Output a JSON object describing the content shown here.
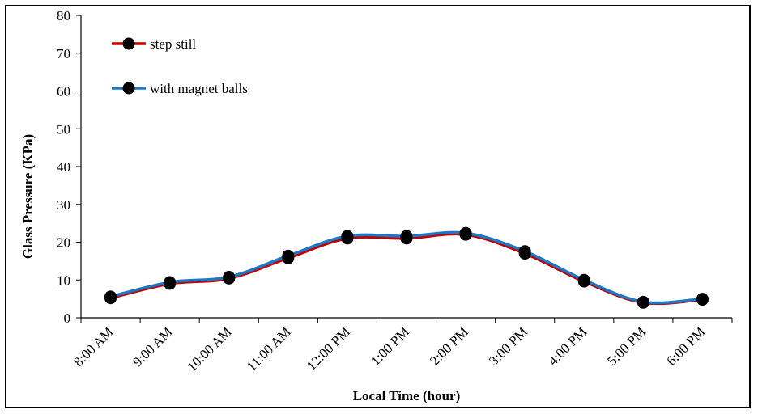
{
  "chart_data": {
    "type": "line",
    "xlabel": "Local Time (hour)",
    "ylabel": "Glass Pressure (KPa)",
    "categories": [
      "8:00 AM",
      "9:00 AM",
      "10:00 AM",
      "11:00 AM",
      "12:00 PM",
      "1:00 PM",
      "2:00 PM",
      "3:00 PM",
      "4:00 PM",
      "5:00 PM",
      "6:00 PM"
    ],
    "ylim": [
      0,
      80
    ],
    "yticks": [
      0,
      10,
      20,
      30,
      40,
      50,
      60,
      70,
      80
    ],
    "legend_position": "top-left",
    "grid": false,
    "series": [
      {
        "name": "step still",
        "color": "#c00000",
        "values": [
          5.2,
          9.0,
          10.4,
          15.8,
          21.0,
          21.0,
          22.0,
          17.0,
          9.6,
          4.0,
          4.8
        ]
      },
      {
        "name": "with magnet balls",
        "color": "#1f77c4",
        "values": [
          5.6,
          9.4,
          10.8,
          16.4,
          21.6,
          21.6,
          22.4,
          17.6,
          10.0,
          4.2,
          5.0
        ]
      }
    ]
  }
}
